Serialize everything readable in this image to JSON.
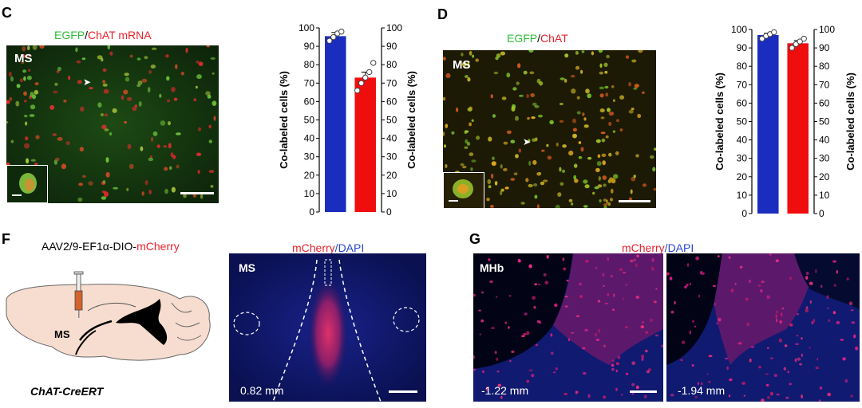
{
  "panels": {
    "C": {
      "letter": "C",
      "title_a": "EGFP",
      "title_sep": "/",
      "title_b": "ChAT mRNA",
      "region": "MS"
    },
    "D": {
      "letter": "D",
      "title_a": "EGFP",
      "title_sep": "/",
      "title_b": "ChAT",
      "region": "MS"
    },
    "F": {
      "letter": "F",
      "virus_prefix": "AAV2/9-EF1α-DIO-",
      "virus_suffix": "mCherry",
      "schematic_region": "MS",
      "mouse_line": "ChAT-CreERT",
      "micro_title_a": "mCherry",
      "micro_sep": "/",
      "micro_title_b": "DAPI",
      "micro_region": "MS",
      "coord": "0.82 mm"
    },
    "G": {
      "letter": "G",
      "micro_title_a": "mCherry",
      "micro_sep": "/",
      "micro_title_b": "DAPI",
      "region": "MHb",
      "coord_left": "-1.22 mm",
      "coord_right": "-1.94 mm"
    }
  },
  "colors": {
    "blue_bar": "#1a2dbf",
    "red_bar": "#f00d0d",
    "egfp_green": "#2ebd3a",
    "mcherry_red": "#e8222b",
    "dapi_blue": "#2746d6"
  },
  "chart_data": [
    {
      "type": "bar",
      "panel": "C",
      "categories": [
        "",
        ""
      ],
      "values": [
        95.5,
        73
      ],
      "errors": [
        2,
        3
      ],
      "points": [
        [
          93,
          95,
          97,
          98
        ],
        [
          66,
          70,
          73,
          76,
          81
        ]
      ],
      "bar_colors": [
        "#1a2dbf",
        "#f00d0d"
      ],
      "ylabel_left": "Co-labeled cells (%)",
      "ylabel_right": "Co-labeled cells (%)",
      "ylim": [
        0,
        100
      ],
      "yticks": [
        "0",
        "10",
        "20",
        "30",
        "40",
        "50",
        "60",
        "70",
        "80",
        "90",
        "100"
      ]
    },
    {
      "type": "bar",
      "panel": "D",
      "categories": [
        "",
        ""
      ],
      "values": [
        97,
        92.5
      ],
      "errors": [
        1,
        1.5
      ],
      "points": [
        [
          95,
          96.5,
          97.5,
          98.5
        ],
        [
          90,
          92,
          93.5,
          95
        ]
      ],
      "bar_colors": [
        "#1a2dbf",
        "#f00d0d"
      ],
      "ylabel_left": "Co-labeled cells (%)",
      "ylabel_right": "Co-labeled cells (%)",
      "ylim": [
        0,
        100
      ],
      "yticks": [
        "0",
        "10",
        "20",
        "30",
        "40",
        "50",
        "60",
        "70",
        "80",
        "90",
        "100"
      ]
    }
  ]
}
